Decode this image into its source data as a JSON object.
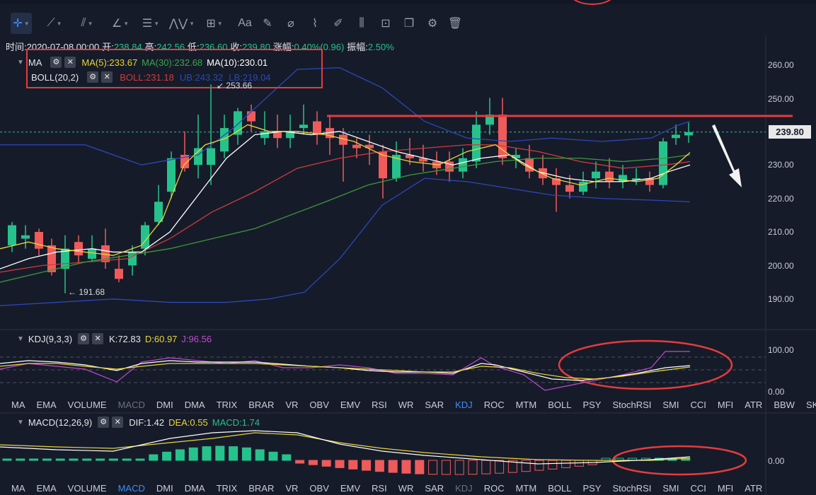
{
  "info_bar": {
    "time": "时间:2020-07-08 00:00",
    "open_label": "开:",
    "open": "238.84",
    "high_label": "高:",
    "high": "242.56",
    "low_label": "低:",
    "low": "236.60",
    "close_label": "收:",
    "close": "239.80",
    "change_label": "涨幅:",
    "change": "0.40%(0.96)",
    "amp_label": "振幅:",
    "amp": "2.50%"
  },
  "ma_legend": {
    "name": "MA",
    "ma5": "MA(5):233.67",
    "ma30": "MA(30):232.68",
    "ma10": "MA(10):230.01"
  },
  "boll_legend": {
    "name": "BOLL(20,2)",
    "boll": "BOLL:231.18",
    "ub": "UB:243.32",
    "lb": "LB:219.04"
  },
  "kdj_legend": {
    "name": "KDJ(9,3,3)",
    "k": "K:72.83",
    "d": "D:60.97",
    "j": "J:96.56"
  },
  "macd_legend": {
    "name": "MACD(12,26,9)",
    "dif": "DIF:1.42",
    "dea": "DEA:0.55",
    "macd": "MACD:1.74"
  },
  "price_axis": [
    "260.00",
    "250.00",
    "240.00",
    "230.00",
    "220.00",
    "210.00",
    "200.00",
    "190.00"
  ],
  "last_price": "239.80",
  "kdj_axis": [
    "100.00",
    "0.00"
  ],
  "macd_axis": [
    "0.00"
  ],
  "annotations": {
    "high_mark": "253.66",
    "low_mark": "191.68"
  },
  "indicator_tabs_1": [
    "MA",
    "EMA",
    "VOLUME",
    "MACD",
    "DMI",
    "DMA",
    "TRIX",
    "BRAR",
    "VR",
    "OBV",
    "EMV",
    "RSI",
    "WR",
    "SAR",
    "KDJ",
    "ROC",
    "MTM",
    "BOLL",
    "PSY",
    "StochRSI",
    "SMI",
    "CCI",
    "MFI",
    "ATR",
    "BBW",
    "SKDJ"
  ],
  "indicator_tabs_2": [
    "MA",
    "EMA",
    "VOLUME",
    "MACD",
    "DMI",
    "DMA",
    "TRIX",
    "BRAR",
    "VR",
    "OBV",
    "EMV",
    "RSI",
    "WR",
    "SAR",
    "KDJ",
    "ROC",
    "MTM",
    "BOLL",
    "PSY",
    "StochRSI",
    "SMI",
    "CCI",
    "MFI",
    "ATR"
  ],
  "toolbar_icons": [
    "crosshair-icon",
    "trend-line-icon",
    "parallel-line-icon",
    "angle-icon",
    "fib-icon",
    "wave-icon",
    "rectangle-icon",
    "text-icon",
    "brush-icon",
    "eraser-icon",
    "ruler-icon",
    "pencil-icon",
    "measure-icon",
    "lock-icon",
    "copy-icon",
    "settings-icon",
    "trash-icon"
  ],
  "toolbar_text": "Aa",
  "colors": {
    "up": "#26c28b",
    "down": "#ef5b5b",
    "ma5": "#e8d53a",
    "ma10": "#ffffff",
    "ma30": "#3a9a3a",
    "boll": "#d33a3a",
    "band": "#2a48b8",
    "resistance": "#e63b3b"
  }
}
